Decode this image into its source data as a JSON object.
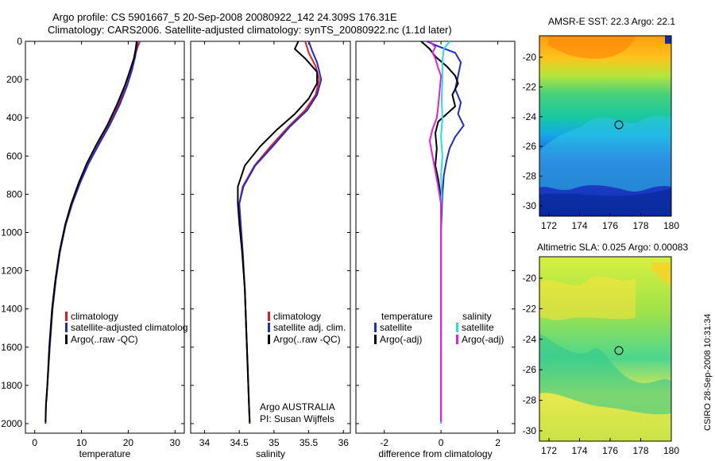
{
  "header": {
    "line1": "Argo profile: CS 5901667_5 20-Sep-2008 20080922_142 24.309S 176.31E",
    "line2": "Climatology: CARS2006. Satellite-adjusted climatology: synTS_20080922.nc (1.1d later)"
  },
  "stamp": "CSIRO 28-Sep-2008 10:31:34",
  "colors": {
    "climatology": "#e8191c",
    "satellite": "#1b2bd6",
    "argo": "#000000",
    "salinity_satellite": "#22e0e8",
    "salinity_argo": "#e81ed8"
  },
  "depth_axis": {
    "ylim": [
      0,
      2050
    ],
    "ticks": [
      0,
      200,
      400,
      600,
      800,
      1000,
      1200,
      1400,
      1600,
      1800,
      2000
    ]
  },
  "panels": {
    "temperature": {
      "xlabel": "temperature",
      "xlim": [
        -2,
        32
      ],
      "xticks": [
        0,
        10,
        20,
        30
      ],
      "legend": [
        "climatology",
        "satellite-adjusted climatolog",
        "Argo(..raw -QC)"
      ]
    },
    "salinity": {
      "xlabel": "salinity",
      "xlim": [
        33.8,
        36.1
      ],
      "xticks": [
        34,
        34.5,
        35,
        35.5,
        36
      ],
      "legend": [
        "climatology",
        "satellite adj. clim.",
        "Argo(..raw -QC)"
      ],
      "note1": "Argo AUSTRALIA",
      "note2": "PI: Susan Wijffels"
    },
    "difference": {
      "xlabel": "difference from climatology",
      "xlim": [
        -3,
        2.6
      ],
      "xticks": [
        -2,
        0,
        2
      ],
      "legend_left": [
        "temperature",
        "satellite",
        "Argo(-adj)"
      ],
      "legend_right": [
        "salinity",
        "satellite",
        "Argo(-adj)"
      ]
    }
  },
  "maps": {
    "sst": {
      "title": "AMSR-E SST: 22.3 Argo: 22.1",
      "yticks": [
        "-20",
        "-22",
        "-24",
        "-26",
        "-28",
        "-30"
      ],
      "xticks": [
        "172",
        "174",
        "176",
        "178",
        "180"
      ]
    },
    "sla": {
      "title": "Altimetric SLA: 0.025 Argo: 0.00083",
      "yticks": [
        "-20",
        "-22",
        "-24",
        "-26",
        "-28",
        "-30"
      ],
      "xticks": [
        "172",
        "174",
        "176",
        "178",
        "180"
      ]
    }
  },
  "chart_data": [
    {
      "type": "line",
      "xlabel": "temperature",
      "ylabel": "",
      "xlim": [
        -2,
        32
      ],
      "ylim": [
        0,
        2050
      ],
      "series": [
        {
          "name": "climatology",
          "color": "#e8191c",
          "points": [
            [
              22.5,
              0
            ],
            [
              22.0,
              30
            ],
            [
              21.4,
              80
            ],
            [
              20.5,
              150
            ],
            [
              19.4,
              230
            ],
            [
              17.9,
              330
            ],
            [
              15.8,
              440
            ],
            [
              13.6,
              540
            ],
            [
              11.5,
              640
            ],
            [
              9.7,
              740
            ],
            [
              8.0,
              850
            ],
            [
              6.6,
              960
            ],
            [
              5.4,
              1100
            ],
            [
              4.5,
              1250
            ],
            [
              3.8,
              1400
            ],
            [
              3.2,
              1600
            ],
            [
              2.7,
              1800
            ],
            [
              2.5,
              1880
            ]
          ]
        },
        {
          "name": "satellite-adjusted climatolog",
          "color": "#1b2bd6",
          "points": [
            [
              22.0,
              0
            ],
            [
              21.8,
              30
            ],
            [
              21.5,
              80
            ],
            [
              20.8,
              150
            ],
            [
              19.8,
              230
            ],
            [
              18.2,
              330
            ],
            [
              16.0,
              440
            ],
            [
              13.7,
              540
            ],
            [
              11.5,
              640
            ],
            [
              9.7,
              740
            ],
            [
              8.0,
              850
            ],
            [
              6.6,
              960
            ],
            [
              5.4,
              1100
            ],
            [
              4.5,
              1250
            ],
            [
              3.8,
              1400
            ],
            [
              3.2,
              1600
            ],
            [
              2.7,
              1800
            ],
            [
              2.4,
              1900
            ],
            [
              2.3,
              2000
            ]
          ]
        },
        {
          "name": "Argo(..raw -QC)",
          "color": "#000000",
          "points": [
            [
              21.8,
              0
            ],
            [
              21.6,
              40
            ],
            [
              21.2,
              90
            ],
            [
              20.4,
              150
            ],
            [
              19.3,
              230
            ],
            [
              17.6,
              330
            ],
            [
              15.5,
              440
            ],
            [
              13.2,
              540
            ],
            [
              11.1,
              640
            ],
            [
              9.4,
              740
            ],
            [
              7.8,
              850
            ],
            [
              6.5,
              960
            ],
            [
              5.3,
              1100
            ],
            [
              4.4,
              1250
            ],
            [
              3.7,
              1400
            ],
            [
              3.1,
              1600
            ],
            [
              2.7,
              1800
            ],
            [
              2.4,
              1900
            ],
            [
              2.3,
              1990
            ]
          ]
        }
      ]
    },
    {
      "type": "line",
      "xlabel": "salinity",
      "ylabel": "",
      "xlim": [
        33.8,
        36.1
      ],
      "ylim": [
        0,
        2050
      ],
      "series": [
        {
          "name": "climatology",
          "color": "#e8191c",
          "points": [
            [
              35.45,
              0
            ],
            [
              35.5,
              60
            ],
            [
              35.6,
              130
            ],
            [
              35.65,
              200
            ],
            [
              35.6,
              280
            ],
            [
              35.45,
              360
            ],
            [
              35.2,
              450
            ],
            [
              34.95,
              550
            ],
            [
              34.72,
              650
            ],
            [
              34.55,
              760
            ],
            [
              34.5,
              850
            ],
            [
              34.52,
              950
            ],
            [
              34.55,
              1100
            ],
            [
              34.58,
              1300
            ],
            [
              34.6,
              1500
            ],
            [
              34.62,
              1700
            ],
            [
              34.64,
              1900
            ],
            [
              34.65,
              2000
            ]
          ]
        },
        {
          "name": "satellite adj. clim.",
          "color": "#1b2bd6",
          "points": [
            [
              35.5,
              0
            ],
            [
              35.55,
              50
            ],
            [
              35.62,
              110
            ],
            [
              35.68,
              200
            ],
            [
              35.62,
              280
            ],
            [
              35.48,
              360
            ],
            [
              35.22,
              450
            ],
            [
              34.98,
              550
            ],
            [
              34.73,
              650
            ],
            [
              34.56,
              760
            ],
            [
              34.5,
              850
            ],
            [
              34.52,
              950
            ],
            [
              34.55,
              1100
            ],
            [
              34.58,
              1300
            ],
            [
              34.6,
              1500
            ],
            [
              34.62,
              1700
            ],
            [
              34.64,
              1900
            ],
            [
              34.65,
              2000
            ]
          ]
        },
        {
          "name": "Argo(..raw -QC)",
          "color": "#000000",
          "points": [
            [
              35.35,
              0
            ],
            [
              35.3,
              40
            ],
            [
              35.45,
              90
            ],
            [
              35.62,
              160
            ],
            [
              35.62,
              220
            ],
            [
              35.5,
              300
            ],
            [
              35.3,
              380
            ],
            [
              35.05,
              460
            ],
            [
              34.8,
              550
            ],
            [
              34.58,
              650
            ],
            [
              34.48,
              760
            ],
            [
              34.48,
              850
            ],
            [
              34.5,
              950
            ],
            [
              34.54,
              1100
            ],
            [
              34.58,
              1300
            ],
            [
              34.6,
              1500
            ],
            [
              34.62,
              1700
            ],
            [
              34.64,
              1900
            ],
            [
              34.65,
              1990
            ]
          ]
        }
      ]
    },
    {
      "type": "line",
      "xlabel": "difference from climatology",
      "ylabel": "",
      "xlim": [
        -3,
        2.6
      ],
      "ylim": [
        0,
        2050
      ],
      "series": [
        {
          "name": "temperature satellite",
          "color": "#1b2bd6",
          "points": [
            [
              -0.5,
              0
            ],
            [
              -0.2,
              20
            ],
            [
              0.5,
              60
            ],
            [
              0.7,
              110
            ],
            [
              0.6,
              180
            ],
            [
              0.5,
              250
            ],
            [
              0.7,
              320
            ],
            [
              0.6,
              380
            ],
            [
              0.8,
              440
            ],
            [
              0.5,
              500
            ],
            [
              0.3,
              560
            ],
            [
              0.2,
              620
            ],
            [
              0.1,
              700
            ],
            [
              0.05,
              800
            ],
            [
              0,
              1000
            ],
            [
              0,
              2000
            ]
          ]
        },
        {
          "name": "temperature Argo(-adj)",
          "color": "#000000",
          "points": [
            [
              -0.7,
              0
            ],
            [
              -0.4,
              40
            ],
            [
              -0.2,
              80
            ],
            [
              0.2,
              130
            ],
            [
              0.5,
              180
            ],
            [
              0.6,
              220
            ],
            [
              0.4,
              280
            ],
            [
              0.5,
              340
            ],
            [
              0.2,
              380
            ],
            [
              -0.1,
              420
            ],
            [
              -0.2,
              480
            ],
            [
              -0.15,
              560
            ],
            [
              -0.2,
              650
            ],
            [
              -0.1,
              720
            ],
            [
              0,
              820
            ],
            [
              0,
              1000
            ],
            [
              0,
              1990
            ]
          ]
        },
        {
          "name": "salinity satellite",
          "color": "#22e0e8",
          "points": [
            [
              0.3,
              0
            ],
            [
              0.1,
              40
            ],
            [
              0.05,
              100
            ],
            [
              0.05,
              200
            ],
            [
              0.02,
              300
            ],
            [
              0.05,
              400
            ],
            [
              0,
              500
            ],
            [
              0.05,
              600
            ],
            [
              0,
              700
            ],
            [
              0.02,
              800
            ],
            [
              0,
              900
            ],
            [
              0,
              2000
            ]
          ]
        },
        {
          "name": "salinity Argo(-adj)",
          "color": "#e81ed8",
          "points": [
            [
              -0.4,
              0
            ],
            [
              -0.2,
              30
            ],
            [
              -0.3,
              60
            ],
            [
              -0.2,
              90
            ],
            [
              -0.1,
              140
            ],
            [
              0,
              180
            ],
            [
              -0.05,
              260
            ],
            [
              -0.1,
              340
            ],
            [
              -0.15,
              400
            ],
            [
              -0.3,
              460
            ],
            [
              -0.4,
              520
            ],
            [
              -0.3,
              600
            ],
            [
              -0.2,
              680
            ],
            [
              -0.1,
              760
            ],
            [
              0,
              850
            ],
            [
              0,
              1000
            ],
            [
              0,
              1990
            ]
          ]
        }
      ]
    }
  ]
}
